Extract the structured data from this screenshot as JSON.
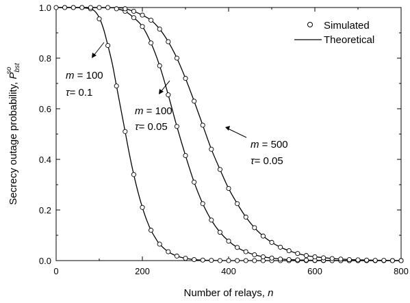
{
  "chart_data": {
    "type": "line",
    "xlabel": "Number of relays,",
    "xlabel_var": "n",
    "ylabel": "Secrecy outage probability,",
    "ylabel_symbol": "P",
    "ylabel_sub": "bst",
    "ylabel_sup": "so",
    "xlim": [
      0,
      800
    ],
    "ylim": [
      0,
      1.0
    ],
    "x_ticks": [
      "0",
      "200",
      "400",
      "600",
      "800"
    ],
    "y_ticks": [
      "0.0",
      "0.2",
      "0.4",
      "0.6",
      "0.8",
      "1.0"
    ],
    "grid": false,
    "legend_position": "top-right",
    "legend": {
      "simulated": "Simulated",
      "theoretical": "Theoretical"
    },
    "series": [
      {
        "label_line1_var": "m",
        "label_line1_val": "= 100",
        "label_line2_var": "τ",
        "label_line2_val": "= 0.1",
        "sim_x": [
          0,
          20,
          40,
          60,
          80,
          100,
          120,
          140,
          160,
          180,
          200,
          220,
          240,
          260,
          280,
          300,
          320,
          340,
          360,
          380,
          400,
          420,
          440,
          460,
          480,
          500,
          520,
          540,
          560,
          580,
          600,
          620,
          640,
          660,
          680,
          700,
          720,
          740,
          760,
          780,
          800
        ],
        "sim_y": [
          1.0,
          1.0,
          1.0,
          1.0,
          0.995,
          0.955,
          0.85,
          0.69,
          0.51,
          0.34,
          0.21,
          0.12,
          0.065,
          0.035,
          0.018,
          0.009,
          0.004,
          0.002,
          0.001,
          0,
          0,
          0,
          0,
          0,
          0,
          0,
          0,
          0,
          0,
          0,
          0,
          0,
          0,
          0,
          0,
          0,
          0,
          0,
          0,
          0,
          0
        ],
        "theory_x": [
          0,
          40,
          60,
          80,
          90,
          100,
          110,
          120,
          130,
          140,
          150,
          160,
          170,
          180,
          190,
          200,
          210,
          220,
          230,
          240,
          260,
          280,
          300,
          320,
          340,
          360,
          400,
          500,
          600,
          700,
          800
        ],
        "theory_y": [
          1.0,
          1.0,
          0.999,
          0.995,
          0.985,
          0.96,
          0.915,
          0.85,
          0.78,
          0.69,
          0.6,
          0.51,
          0.42,
          0.34,
          0.27,
          0.21,
          0.16,
          0.12,
          0.09,
          0.065,
          0.035,
          0.018,
          0.009,
          0.004,
          0.002,
          0.001,
          0,
          0,
          0,
          0,
          0
        ]
      },
      {
        "label_line1_var": "m",
        "label_line1_val": "= 100",
        "label_line2_var": "τ",
        "label_line2_val": "= 0.05",
        "sim_x": [
          20,
          40,
          60,
          80,
          100,
          120,
          140,
          160,
          180,
          200,
          220,
          240,
          260,
          280,
          300,
          320,
          340,
          360,
          380,
          400,
          420,
          440,
          460,
          480,
          500,
          520,
          540,
          560,
          580,
          600,
          620,
          640,
          660,
          680,
          700,
          720,
          740,
          760,
          780,
          800
        ],
        "sim_y": [
          1.0,
          1.0,
          1.0,
          1.0,
          1.0,
          1.0,
          0.995,
          0.985,
          0.96,
          0.925,
          0.86,
          0.77,
          0.655,
          0.53,
          0.415,
          0.31,
          0.225,
          0.16,
          0.112,
          0.077,
          0.052,
          0.035,
          0.023,
          0.015,
          0.01,
          0.006,
          0.004,
          0.003,
          0.002,
          0.001,
          0.001,
          0,
          0,
          0,
          0,
          0,
          0,
          0,
          0,
          0
        ],
        "theory_x": [
          0,
          120,
          140,
          160,
          180,
          200,
          220,
          240,
          260,
          280,
          300,
          320,
          340,
          360,
          380,
          400,
          420,
          440,
          460,
          480,
          500,
          540,
          600,
          700,
          800
        ],
        "theory_y": [
          1.0,
          1.0,
          0.995,
          0.985,
          0.96,
          0.925,
          0.86,
          0.77,
          0.655,
          0.53,
          0.415,
          0.31,
          0.225,
          0.16,
          0.112,
          0.077,
          0.052,
          0.035,
          0.023,
          0.015,
          0.01,
          0.004,
          0.001,
          0,
          0
        ]
      },
      {
        "label_line1_var": "m",
        "label_line1_val": "= 500",
        "label_line2_var": "τ",
        "label_line2_val": "= 0.05",
        "sim_x": [
          160,
          180,
          200,
          220,
          240,
          260,
          280,
          300,
          320,
          340,
          360,
          380,
          400,
          420,
          440,
          460,
          480,
          500,
          520,
          540,
          560,
          580,
          600,
          620,
          640,
          660,
          680,
          700,
          720,
          740,
          760,
          780,
          800
        ],
        "sim_y": [
          0.995,
          0.985,
          0.97,
          0.95,
          0.915,
          0.865,
          0.8,
          0.72,
          0.63,
          0.535,
          0.44,
          0.36,
          0.285,
          0.225,
          0.172,
          0.13,
          0.097,
          0.072,
          0.053,
          0.039,
          0.028,
          0.02,
          0.015,
          0.011,
          0.008,
          0.006,
          0.004,
          0.003,
          0.002,
          0.001,
          0.001,
          0,
          0
        ],
        "theory_x": [
          0,
          140,
          160,
          180,
          200,
          220,
          240,
          260,
          280,
          300,
          320,
          340,
          360,
          380,
          400,
          420,
          440,
          460,
          480,
          500,
          520,
          540,
          560,
          580,
          600,
          650,
          700,
          800
        ],
        "theory_y": [
          1.0,
          0.999,
          0.995,
          0.985,
          0.97,
          0.95,
          0.915,
          0.865,
          0.8,
          0.72,
          0.63,
          0.535,
          0.44,
          0.36,
          0.285,
          0.225,
          0.172,
          0.13,
          0.097,
          0.072,
          0.053,
          0.039,
          0.028,
          0.02,
          0.015,
          0.007,
          0.003,
          0
        ]
      }
    ]
  }
}
